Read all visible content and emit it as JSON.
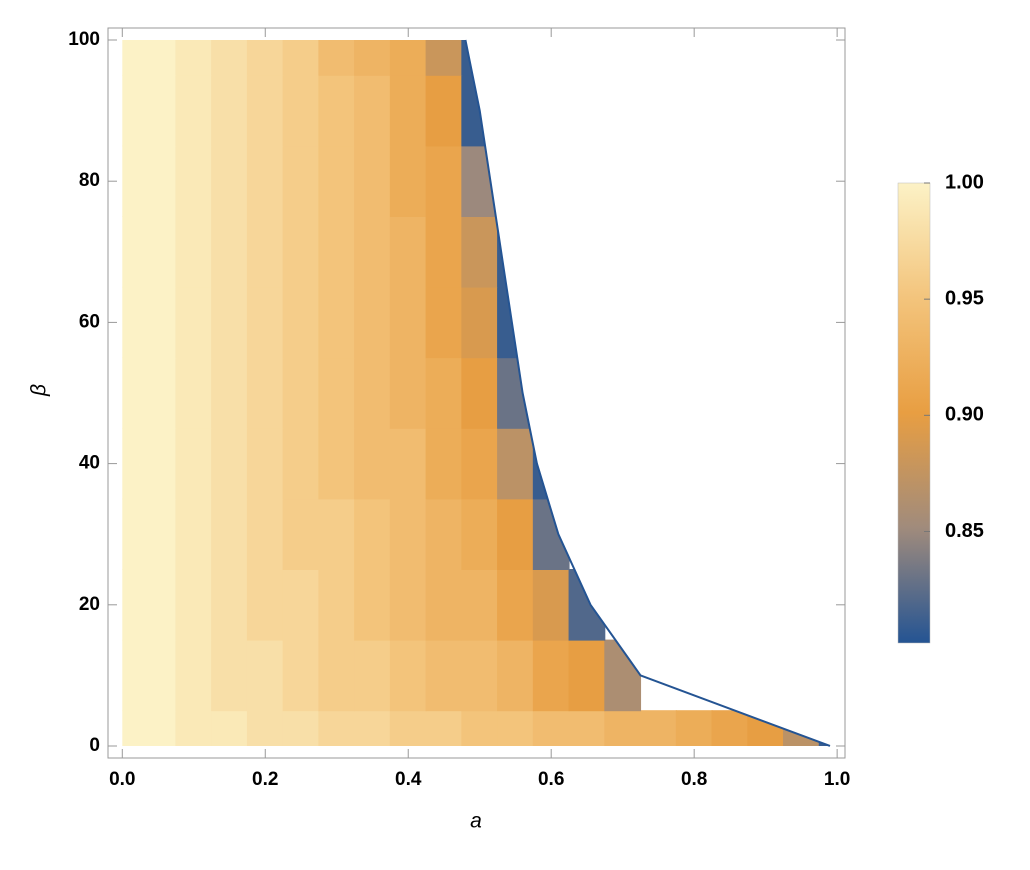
{
  "chart_data": {
    "type": "heatmap",
    "x_label": "a",
    "y_label": "β",
    "x": [
      0,
      0.05,
      0.1,
      0.15,
      0.2,
      0.25,
      0.3,
      0.35,
      0.4,
      0.45,
      0.5,
      0.55,
      0.6,
      0.65,
      0.7,
      0.75,
      0.8,
      0.85,
      0.9,
      0.95,
      1
    ],
    "y": [
      0,
      10,
      20,
      30,
      40,
      50,
      60,
      70,
      80,
      90,
      100
    ],
    "z": [
      [
        1,
        1,
        0.99,
        0.99,
        0.98,
        0.98,
        0.97,
        0.97,
        0.96,
        0.96,
        0.95,
        0.95,
        0.94,
        0.94,
        0.93,
        0.93,
        0.92,
        0.91,
        0.9,
        0.87,
        0.81
      ],
      [
        1,
        1,
        0.99,
        0.98,
        0.98,
        0.97,
        0.96,
        0.96,
        0.95,
        0.94,
        0.94,
        0.93,
        0.91,
        0.9,
        0.86,
        null,
        null,
        null,
        null,
        null,
        null
      ],
      [
        1,
        1,
        0.99,
        0.98,
        0.97,
        0.97,
        0.96,
        0.95,
        0.94,
        0.93,
        0.93,
        0.91,
        0.89,
        0.82,
        null,
        null,
        null,
        null,
        null,
        null,
        null
      ],
      [
        1,
        1,
        0.99,
        0.98,
        0.97,
        0.96,
        0.96,
        0.95,
        0.94,
        0.93,
        0.92,
        0.9,
        0.83,
        null,
        null,
        null,
        null,
        null,
        null,
        null,
        null
      ],
      [
        1,
        1,
        0.99,
        0.98,
        0.97,
        0.96,
        0.95,
        0.94,
        0.94,
        0.92,
        0.91,
        0.87,
        0.81,
        null,
        null,
        null,
        null,
        null,
        null,
        null,
        null
      ],
      [
        1,
        1,
        0.99,
        0.98,
        0.97,
        0.96,
        0.95,
        0.94,
        0.93,
        0.92,
        0.9,
        0.83,
        null,
        null,
        null,
        null,
        null,
        null,
        null,
        null,
        null
      ],
      [
        1,
        1,
        0.99,
        0.98,
        0.97,
        0.96,
        0.95,
        0.94,
        0.93,
        0.91,
        0.89,
        0.81,
        null,
        null,
        null,
        null,
        null,
        null,
        null,
        null,
        null
      ],
      [
        1,
        1,
        0.99,
        0.98,
        0.97,
        0.96,
        0.95,
        0.94,
        0.93,
        0.91,
        0.88,
        0.81,
        null,
        null,
        null,
        null,
        null,
        null,
        null,
        null,
        null
      ],
      [
        1,
        1,
        0.99,
        0.98,
        0.97,
        0.96,
        0.95,
        0.94,
        0.92,
        0.91,
        0.85,
        null,
        null,
        null,
        null,
        null,
        null,
        null,
        null,
        null,
        null
      ],
      [
        1,
        1,
        0.99,
        0.98,
        0.97,
        0.96,
        0.95,
        0.94,
        0.92,
        0.9,
        0.81,
        null,
        null,
        null,
        null,
        null,
        null,
        null,
        null,
        null,
        null
      ],
      [
        1,
        1,
        0.99,
        0.98,
        0.97,
        0.96,
        0.94,
        0.93,
        0.92,
        0.88,
        0.81,
        null,
        null,
        null,
        null,
        null,
        null,
        null,
        null,
        null,
        null
      ]
    ],
    "boundary_x": [
      0.99,
      0.725,
      0.655,
      0.61,
      0.58,
      0.56,
      0.545,
      0.53,
      0.515,
      0.5,
      0.48
    ],
    "xlim": [
      -0.02,
      1.011
    ],
    "ylim": [
      -1.7,
      101.7
    ],
    "xticks": [
      {
        "value": 0,
        "label": "0.0"
      },
      0.2,
      0.4,
      0.6,
      0.8,
      {
        "value": 1,
        "label": "1.0"
      }
    ],
    "yticks": [
      0,
      20,
      40,
      60,
      80,
      100
    ],
    "colorbar": {
      "lim": [
        0.802,
        1
      ],
      "ticks": [
        {
          "value": 1,
          "label": "1.00"
        },
        0.95,
        {
          "value": 0.9,
          "label": "0.90"
        },
        0.85
      ],
      "colors": [
        "#245493",
        "#a08b7c",
        "#e89e42",
        "#f3c47c",
        "#fcf2c6"
      ]
    }
  }
}
